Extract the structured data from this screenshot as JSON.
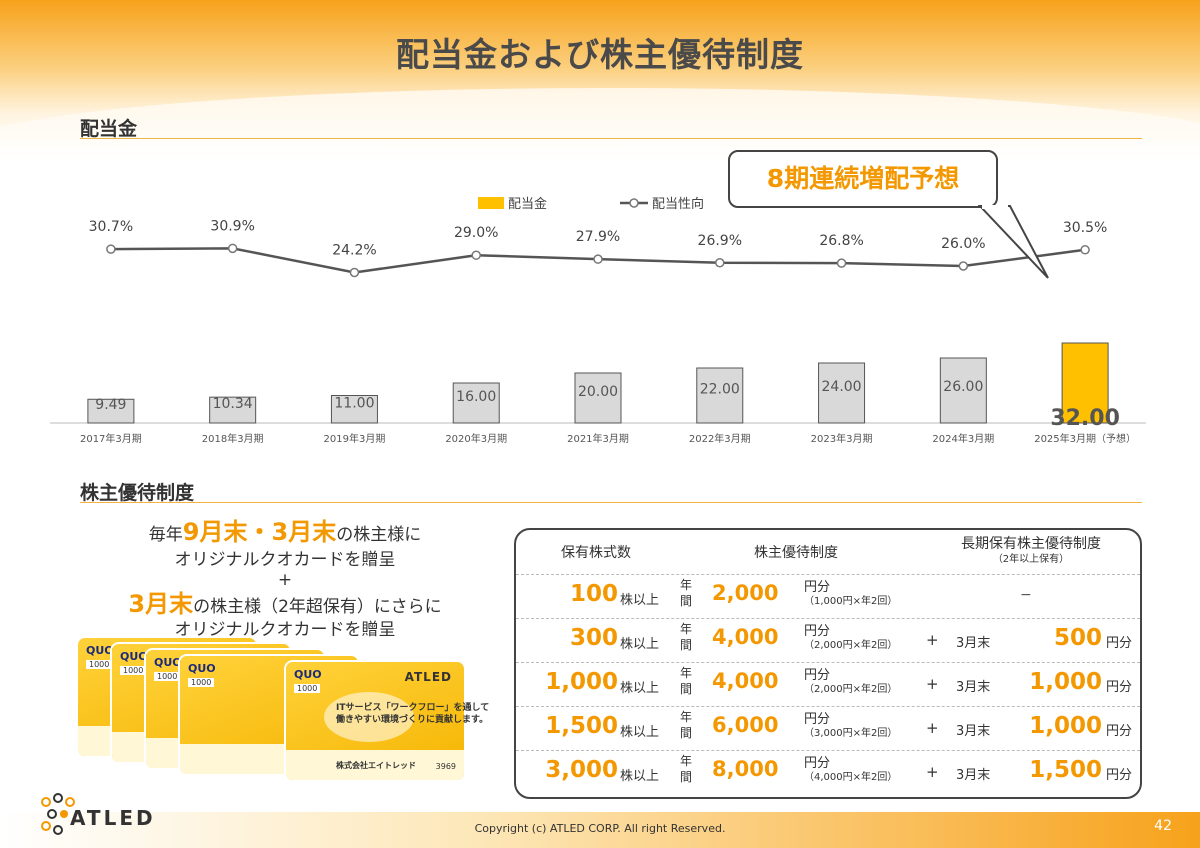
{
  "page": {
    "title": "配当金および株主優待制度",
    "page_number": "42",
    "copyright": "Copyright (c)  ATLED CORP. All right Reserved.",
    "logo_text": "ATLED"
  },
  "dividend_section": {
    "heading": "配当金",
    "callout": "8期連続増配予想"
  },
  "chart_data": {
    "type": "bar",
    "categories": [
      "2017年3月期",
      "2018年3月期",
      "2019年3月期",
      "2020年3月期",
      "2021年3月期",
      "2022年3月期",
      "2023年3月期",
      "2024年3月期",
      "2025年3月期（予想）"
    ],
    "series": [
      {
        "name": "配当金",
        "type": "bar",
        "values": [
          9.49,
          10.34,
          11.0,
          16.0,
          20.0,
          22.0,
          24.0,
          26.0,
          32.0
        ],
        "labels": [
          "9.49",
          "10.34",
          "11.00",
          "16.00",
          "20.00",
          "22.00",
          "24.00",
          "26.00",
          "32.00"
        ]
      },
      {
        "name": "配当性向",
        "type": "line",
        "values": [
          30.7,
          30.9,
          24.2,
          29.0,
          27.9,
          26.9,
          26.8,
          26.0,
          30.5
        ],
        "labels": [
          "30.7%",
          "30.9%",
          "24.2%",
          "29.0%",
          "27.9%",
          "26.9%",
          "26.8%",
          "26.0%",
          "30.5%"
        ]
      }
    ],
    "legend_position": "top",
    "highlight_index": 8,
    "colors": {
      "bar": "#d9d9d9",
      "bar_highlight": "#ffc000",
      "line": "#555555"
    }
  },
  "benefit_section": {
    "heading": "株主優待制度",
    "promo": {
      "line1_pre": "毎年",
      "line1_hl": "9月末・3月末",
      "line1_post": "の株主様に",
      "line2": "オリジナルクオカードを贈呈",
      "plus": "+",
      "line3_hl": "3月末",
      "line3_post": "の株主様（2年超保有）にさらに",
      "line4": "オリジナルクオカードを贈呈"
    },
    "card": {
      "brand": "QUO",
      "amount": "1000",
      "company_mark": "ATLED",
      "message1": "ITサービス「ワークフロー」を通して",
      "message2": "働きやすい環境づくりに貢献します。",
      "company": "株式会社エイトレッド",
      "code": "3969"
    }
  },
  "table": {
    "headers": {
      "shares": "保有株式数",
      "benefit": "株主優待制度",
      "long_term": "長期保有株主優待制度",
      "long_term_sub": "（2年以上保有）"
    },
    "rows": [
      {
        "shares": "100",
        "shares_unit": "株以上",
        "nenkan": "年間",
        "amount": "2,000",
        "unit": "円分",
        "detail": "（1,000円×年2回）",
        "plus": "",
        "timing": "",
        "bonus": "",
        "bonus_unit": "",
        "dash": "−"
      },
      {
        "shares": "300",
        "shares_unit": "株以上",
        "nenkan": "年間",
        "amount": "4,000",
        "unit": "円分",
        "detail": "（2,000円×年2回）",
        "plus": "+",
        "timing": "3月末",
        "bonus": "500",
        "bonus_unit": "円分",
        "dash": ""
      },
      {
        "shares": "1,000",
        "shares_unit": "株以上",
        "nenkan": "年間",
        "amount": "4,000",
        "unit": "円分",
        "detail": "（2,000円×年2回）",
        "plus": "+",
        "timing": "3月末",
        "bonus": "1,000",
        "bonus_unit": "円分",
        "dash": ""
      },
      {
        "shares": "1,500",
        "shares_unit": "株以上",
        "nenkan": "年間",
        "amount": "6,000",
        "unit": "円分",
        "detail": "（3,000円×年2回）",
        "plus": "+",
        "timing": "3月末",
        "bonus": "1,000",
        "bonus_unit": "円分",
        "dash": ""
      },
      {
        "shares": "3,000",
        "shares_unit": "株以上",
        "nenkan": "年間",
        "amount": "8,000",
        "unit": "円分",
        "detail": "（4,000円×年2回）",
        "plus": "+",
        "timing": "3月末",
        "bonus": "1,500",
        "bonus_unit": "円分",
        "dash": ""
      }
    ]
  }
}
